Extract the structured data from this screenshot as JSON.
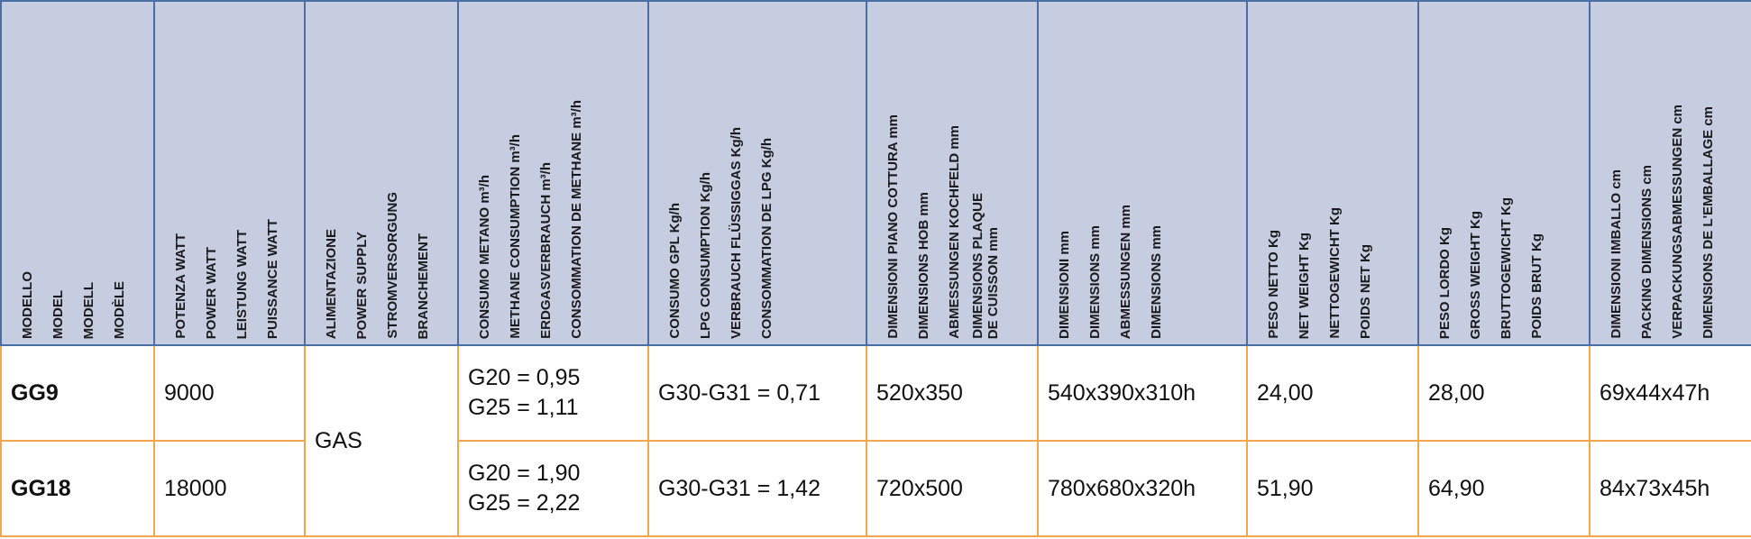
{
  "columns": [
    [
      "MODELLO",
      "MODEL",
      "MODELL",
      "MODÈLE"
    ],
    [
      "POTENZA WATT",
      "POWER WATT",
      "LEISTUNG WATT",
      "PUISSANCE WATT"
    ],
    [
      "ALIMENTAZIONE",
      "POWER SUPPLY",
      "STROMVERSORGUNG",
      "BRANCHEMENT"
    ],
    [
      "CONSUMO METANO m³/h",
      "METHANE CONSUMPTION m³/h",
      "ERDGASVERBRAUCH m³/h",
      "CONSOMMATION DE METHANE m³/h"
    ],
    [
      "CONSUMO GPL Kg/h",
      "LPG CONSUMPTION Kg/h",
      "VERBRAUCH FLÜSSIGGAS Kg/h",
      "CONSOMMATION DE LPG Kg/h"
    ],
    [
      "DIMENSIONI PIANO COTTURA mm",
      "DIMENSIONS HOB mm",
      "ABMESSUNGEN KOCHFELD mm",
      "DIMENSIONS PLAQUE",
      "DE CUISSON mm"
    ],
    [
      "DIMENSIONI mm",
      "DIMENSIONS mm",
      "ABMESSUNGEN mm",
      "DIMENSIONS mm"
    ],
    [
      "PESO NETTO Kg",
      "NET WEIGHT Kg",
      "NETTOGEWICHT Kg",
      "POIDS NET Kg"
    ],
    [
      "PESO LORDO Kg",
      "GROSS WEIGHT Kg",
      "BRUTTOGEWICHT Kg",
      "POIDS BRUT Kg"
    ],
    [
      "DIMENSIONI IMBALLO cm",
      "PACKING DIMENSIONS cm",
      "VERPACKUNGSABMESSUNGEN cm",
      "DIMENSIONS DE L'EMBALLAGE cm"
    ]
  ],
  "power_supply": "GAS",
  "rows": [
    {
      "model": "GG9",
      "power": "9000",
      "methane": [
        "G20 = 0,95",
        "G25 = 1,11"
      ],
      "lpg": "G30-G31 = 0,71",
      "hob": "520x350",
      "dimensions": "540x390x310h",
      "net_weight": "24,00",
      "gross_weight": "28,00",
      "packing": "69x44x47h"
    },
    {
      "model": "GG18",
      "power": "18000",
      "methane": [
        "G20 = 1,90",
        "G25 = 2,22"
      ],
      "lpg": "G30-G31 = 1,42",
      "hob": "720x500",
      "dimensions": "780x680x320h",
      "net_weight": "51,90",
      "gross_weight": "64,90",
      "packing": "84x73x45h"
    }
  ],
  "colors": {
    "header_bg": "#c7cde0",
    "header_border": "#4a6fa5",
    "body_border": "#f5a64c"
  }
}
